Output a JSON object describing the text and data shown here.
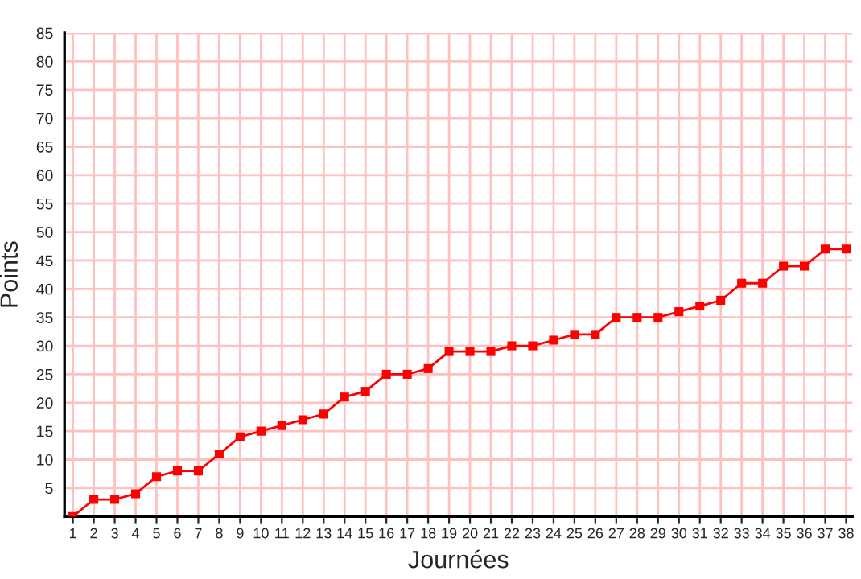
{
  "chart_data": {
    "type": "line",
    "xlabel": "Journées",
    "ylabel": "Points",
    "x": [
      1,
      2,
      3,
      4,
      5,
      6,
      7,
      8,
      9,
      10,
      11,
      12,
      13,
      14,
      15,
      16,
      17,
      18,
      19,
      20,
      21,
      22,
      23,
      24,
      25,
      26,
      27,
      28,
      29,
      30,
      31,
      32,
      33,
      34,
      35,
      36,
      37,
      38
    ],
    "series": [
      {
        "color": "#ff0000",
        "values": [
          0,
          3,
          3,
          4,
          7,
          8,
          8,
          11,
          14,
          15,
          16,
          17,
          18,
          21,
          22,
          25,
          25,
          26,
          29,
          29,
          29,
          30,
          30,
          31,
          32,
          32,
          35,
          35,
          35,
          36,
          37,
          38,
          41,
          41,
          44,
          44,
          47,
          47
        ]
      }
    ],
    "xlim": [
      0.6,
      38.3
    ],
    "xticks": [
      1,
      2,
      3,
      4,
      5,
      6,
      7,
      8,
      9,
      10,
      11,
      12,
      13,
      14,
      15,
      16,
      17,
      18,
      19,
      20,
      21,
      22,
      23,
      24,
      25,
      26,
      27,
      28,
      29,
      30,
      31,
      32,
      33,
      34,
      35,
      36,
      37,
      38
    ],
    "ylim": [
      0,
      85
    ],
    "yticks": [
      5,
      10,
      15,
      20,
      25,
      30,
      35,
      40,
      45,
      50,
      55,
      60,
      65,
      70,
      75,
      80,
      85
    ],
    "grid": true,
    "marker": "square",
    "line_style": "solid"
  }
}
